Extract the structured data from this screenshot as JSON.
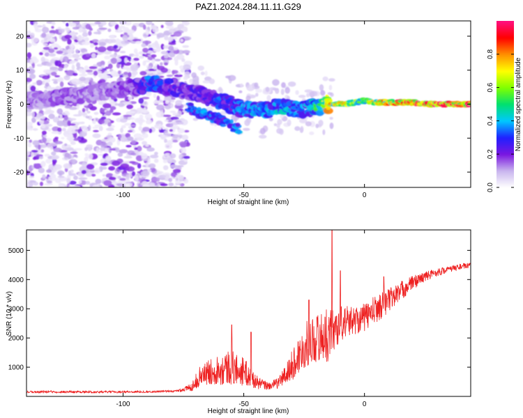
{
  "title": "PAZ1.2024.284.11.11.G29",
  "chart_data": [
    {
      "type": "heatmap",
      "xlabel": "Height of straight line (km)",
      "ylabel": "Frequency (Hz)",
      "xlim": [
        -140,
        44
      ],
      "ylim": [
        -24.5,
        24.5
      ],
      "x_ticks": [
        -100,
        -50,
        0
      ],
      "y_ticks": [
        -20,
        -10,
        0,
        10,
        20
      ],
      "colorbar": {
        "label": "Normalized spectral amplitude",
        "range": [
          0,
          1
        ],
        "ticks": [
          0,
          0.2,
          0.4,
          0.6,
          0.8
        ],
        "tick_labels": [
          "0.0",
          "0.2",
          "0.4",
          "0.6",
          "0.8"
        ],
        "colors": [
          "#ffffff",
          "#c9b6ee",
          "#7a16e0",
          "#2020ff",
          "#00c8ff",
          "#00e070",
          "#80ff00",
          "#ffff00",
          "#ff9000",
          "#ff0000",
          "#ff1080"
        ]
      },
      "ridge": [
        {
          "x": -135,
          "y": 1.0,
          "amp": 0.15
        },
        {
          "x": -128,
          "y": 2.0,
          "amp": 0.18
        },
        {
          "x": -115,
          "y": 3.0,
          "amp": 0.15
        },
        {
          "x": -105,
          "y": 4.0,
          "amp": 0.17
        },
        {
          "x": -95,
          "y": 5.0,
          "amp": 0.2
        },
        {
          "x": -88,
          "y": 6.0,
          "amp": 0.35
        },
        {
          "x": -80,
          "y": 5.0,
          "amp": 0.25
        },
        {
          "x": -72,
          "y": 3.5,
          "amp": 0.22
        },
        {
          "x": -62,
          "y": 1.5,
          "amp": 0.3
        },
        {
          "x": -52,
          "y": -1.0,
          "amp": 0.35
        },
        {
          "x": -45,
          "y": -2.0,
          "amp": 0.38
        },
        {
          "x": -40,
          "y": -1.5,
          "amp": 0.35
        },
        {
          "x": -35,
          "y": -0.5,
          "amp": 0.4
        },
        {
          "x": -30,
          "y": -1.5,
          "amp": 0.4
        },
        {
          "x": -25,
          "y": -1.5,
          "amp": 0.35
        },
        {
          "x": -20,
          "y": -1.0,
          "amp": 0.45
        },
        {
          "x": -15,
          "y": 0.0,
          "amp": 0.75
        },
        {
          "x": -8,
          "y": 0.0,
          "amp": 0.7
        },
        {
          "x": 0,
          "y": 1.0,
          "amp": 0.55
        },
        {
          "x": 5,
          "y": 0.5,
          "amp": 0.75
        },
        {
          "x": 12,
          "y": 0.5,
          "amp": 0.8
        },
        {
          "x": 20,
          "y": 0.5,
          "amp": 0.9
        },
        {
          "x": 28,
          "y": 0.0,
          "amp": 0.92
        },
        {
          "x": 36,
          "y": 0.0,
          "amp": 0.9
        },
        {
          "x": 44,
          "y": 0.0,
          "amp": 0.88
        }
      ],
      "branch": [
        {
          "x": -73,
          "y": -1.0,
          "amp": 0.3
        },
        {
          "x": -68,
          "y": -2.5,
          "amp": 0.35
        },
        {
          "x": -62,
          "y": -4.0,
          "amp": 0.3
        },
        {
          "x": -57,
          "y": -5.5,
          "amp": 0.32
        },
        {
          "x": -52,
          "y": -7.5,
          "amp": 0.35
        }
      ]
    },
    {
      "type": "line",
      "xlabel": "Height of straight line (km)",
      "ylabel": "SNR (10 * v/v)",
      "xlim": [
        -140,
        44
      ],
      "ylim": [
        0,
        5700
      ],
      "x_ticks": [
        -100,
        -50,
        0
      ],
      "y_ticks": [
        1000,
        2000,
        3000,
        4000,
        5000
      ],
      "color": "#ee2020",
      "envelope": [
        {
          "x": -140,
          "base": 150,
          "amp": 50
        },
        {
          "x": -130,
          "base": 160,
          "amp": 60
        },
        {
          "x": -110,
          "base": 150,
          "amp": 50
        },
        {
          "x": -90,
          "base": 160,
          "amp": 50
        },
        {
          "x": -78,
          "base": 180,
          "amp": 50
        },
        {
          "x": -72,
          "base": 300,
          "amp": 200
        },
        {
          "x": -68,
          "base": 700,
          "amp": 500
        },
        {
          "x": -62,
          "base": 900,
          "amp": 700
        },
        {
          "x": -56,
          "base": 1000,
          "amp": 900
        },
        {
          "x": -50,
          "base": 850,
          "amp": 700
        },
        {
          "x": -44,
          "base": 450,
          "amp": 300
        },
        {
          "x": -40,
          "base": 350,
          "amp": 200
        },
        {
          "x": -36,
          "base": 450,
          "amp": 250
        },
        {
          "x": -32,
          "base": 800,
          "amp": 600
        },
        {
          "x": -28,
          "base": 1300,
          "amp": 900
        },
        {
          "x": -24,
          "base": 1800,
          "amp": 1100
        },
        {
          "x": -20,
          "base": 2000,
          "amp": 1200
        },
        {
          "x": -15,
          "base": 2100,
          "amp": 1300
        },
        {
          "x": -10,
          "base": 2500,
          "amp": 900
        },
        {
          "x": -5,
          "base": 2600,
          "amp": 700
        },
        {
          "x": 0,
          "base": 2700,
          "amp": 700
        },
        {
          "x": 5,
          "base": 3000,
          "amp": 700
        },
        {
          "x": 10,
          "base": 3300,
          "amp": 600
        },
        {
          "x": 15,
          "base": 3600,
          "amp": 500
        },
        {
          "x": 20,
          "base": 3900,
          "amp": 350
        },
        {
          "x": 25,
          "base": 4100,
          "amp": 250
        },
        {
          "x": 30,
          "base": 4250,
          "amp": 200
        },
        {
          "x": 35,
          "base": 4350,
          "amp": 150
        },
        {
          "x": 40,
          "base": 4450,
          "amp": 150
        },
        {
          "x": 44,
          "base": 4480,
          "amp": 120
        }
      ],
      "peaks": [
        {
          "x": -55,
          "y": 2450
        },
        {
          "x": -47,
          "y": 2200
        },
        {
          "x": -23,
          "y": 3300
        },
        {
          "x": -13.5,
          "y": 5700
        },
        {
          "x": -10,
          "y": 4300
        },
        {
          "x": 8,
          "y": 4100
        }
      ]
    }
  ]
}
